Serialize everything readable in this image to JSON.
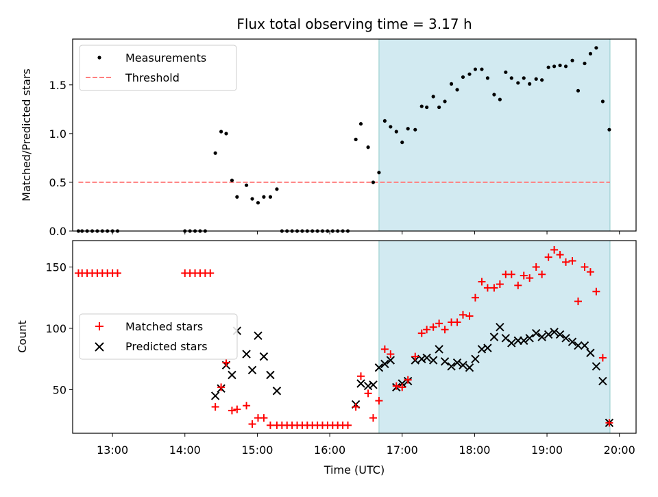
{
  "title": "Flux total observing time = 3.17 h",
  "colors": {
    "shade": "#add8e6",
    "measurement": "#000000",
    "threshold": "#ff7f7f",
    "matched": "#ff0000",
    "predicted": "#000000"
  },
  "chart_data": [
    {
      "type": "scatter",
      "panel": "top",
      "ylabel": "Matched/Predicted stars",
      "ylim": [
        0,
        1.97
      ],
      "yticks": [
        0.0,
        0.5,
        1.0,
        1.5
      ],
      "ytick_labels": [
        "0.0",
        "0.5",
        "1.0",
        "1.5"
      ],
      "xlim": [
        12.45,
        20.23
      ],
      "shaded_region": [
        16.68,
        19.87
      ],
      "legend_position": "upper-left",
      "series": [
        {
          "name": "Measurements",
          "marker": "dot",
          "points": [
            [
              12.53,
              0
            ],
            [
              12.58,
              0
            ],
            [
              12.65,
              0
            ],
            [
              12.72,
              0
            ],
            [
              12.79,
              0
            ],
            [
              12.86,
              0
            ],
            [
              12.93,
              0
            ],
            [
              13.0,
              0
            ],
            [
              13.07,
              0
            ],
            [
              14.0,
              0
            ],
            [
              14.07,
              0
            ],
            [
              14.14,
              0
            ],
            [
              14.21,
              0
            ],
            [
              14.28,
              0
            ],
            [
              14.42,
              0.8
            ],
            [
              14.5,
              1.02
            ],
            [
              14.57,
              1.0
            ],
            [
              14.65,
              0.52
            ],
            [
              14.72,
              0.35
            ],
            [
              14.85,
              0.47
            ],
            [
              14.93,
              0.33
            ],
            [
              15.01,
              0.29
            ],
            [
              15.09,
              0.35
            ],
            [
              15.18,
              0.35
            ],
            [
              15.27,
              0.43
            ],
            [
              15.34,
              0
            ],
            [
              15.41,
              0
            ],
            [
              15.48,
              0
            ],
            [
              15.55,
              0
            ],
            [
              15.62,
              0
            ],
            [
              15.69,
              0
            ],
            [
              15.76,
              0
            ],
            [
              15.83,
              0
            ],
            [
              15.9,
              0
            ],
            [
              15.97,
              0
            ],
            [
              16.04,
              0
            ],
            [
              16.11,
              0
            ],
            [
              16.18,
              0
            ],
            [
              16.25,
              0
            ],
            [
              16.36,
              0.94
            ],
            [
              16.43,
              1.1
            ],
            [
              16.53,
              0.86
            ],
            [
              16.6,
              0.5
            ],
            [
              16.68,
              0.6
            ],
            [
              16.76,
              1.13
            ],
            [
              16.84,
              1.07
            ],
            [
              16.92,
              1.02
            ],
            [
              17.0,
              0.91
            ],
            [
              17.08,
              1.05
            ],
            [
              17.18,
              1.04
            ],
            [
              17.27,
              1.28
            ],
            [
              17.34,
              1.27
            ],
            [
              17.43,
              1.38
            ],
            [
              17.51,
              1.27
            ],
            [
              17.59,
              1.33
            ],
            [
              17.68,
              1.51
            ],
            [
              17.76,
              1.45
            ],
            [
              17.84,
              1.58
            ],
            [
              17.93,
              1.61
            ],
            [
              18.01,
              1.66
            ],
            [
              18.1,
              1.66
            ],
            [
              18.18,
              1.57
            ],
            [
              18.27,
              1.4
            ],
            [
              18.35,
              1.35
            ],
            [
              18.43,
              1.63
            ],
            [
              18.51,
              1.57
            ],
            [
              18.6,
              1.52
            ],
            [
              18.68,
              1.57
            ],
            [
              18.76,
              1.51
            ],
            [
              18.85,
              1.56
            ],
            [
              18.93,
              1.55
            ],
            [
              19.02,
              1.68
            ],
            [
              19.1,
              1.69
            ],
            [
              19.18,
              1.7
            ],
            [
              19.26,
              1.69
            ],
            [
              19.35,
              1.75
            ],
            [
              19.43,
              1.44
            ],
            [
              19.52,
              1.72
            ],
            [
              19.6,
              1.82
            ],
            [
              19.68,
              1.88
            ],
            [
              19.77,
              1.33
            ],
            [
              19.86,
              1.04
            ]
          ]
        },
        {
          "name": "Threshold",
          "style": "dashed",
          "points": [
            [
              12.53,
              0.5
            ],
            [
              19.87,
              0.5
            ]
          ]
        }
      ]
    },
    {
      "type": "scatter",
      "panel": "bottom",
      "xlabel": "Time (UTC)",
      "ylabel": "Count",
      "ylim": [
        14.5,
        171.5
      ],
      "yticks": [
        50,
        100,
        150
      ],
      "ytick_labels": [
        "50",
        "100",
        "150"
      ],
      "xlim": [
        12.45,
        20.23
      ],
      "xticks": [
        13,
        14,
        15,
        16,
        17,
        18,
        19,
        20
      ],
      "xtick_labels": [
        "13:00",
        "14:00",
        "15:00",
        "16:00",
        "17:00",
        "18:00",
        "19:00",
        "20:00"
      ],
      "shaded_region": [
        16.68,
        19.87
      ],
      "legend_position": "center-left",
      "series": [
        {
          "name": "Matched stars",
          "marker": "plus",
          "points": [
            [
              12.53,
              145
            ],
            [
              12.58,
              145
            ],
            [
              12.65,
              145
            ],
            [
              12.72,
              145
            ],
            [
              12.79,
              145
            ],
            [
              12.86,
              145
            ],
            [
              12.93,
              145
            ],
            [
              13.0,
              145
            ],
            [
              13.07,
              145
            ],
            [
              14.0,
              145
            ],
            [
              14.07,
              145
            ],
            [
              14.14,
              145
            ],
            [
              14.21,
              145
            ],
            [
              14.28,
              145
            ],
            [
              14.35,
              145
            ],
            [
              14.42,
              36
            ],
            [
              14.5,
              52
            ],
            [
              14.57,
              72
            ],
            [
              14.65,
              33
            ],
            [
              14.72,
              34
            ],
            [
              14.85,
              37
            ],
            [
              14.93,
              22
            ],
            [
              15.01,
              27
            ],
            [
              15.09,
              27
            ],
            [
              15.18,
              21
            ],
            [
              15.27,
              21
            ],
            [
              15.34,
              21
            ],
            [
              15.41,
              21
            ],
            [
              15.48,
              21
            ],
            [
              15.55,
              21
            ],
            [
              15.62,
              21
            ],
            [
              15.69,
              21
            ],
            [
              15.76,
              21
            ],
            [
              15.83,
              21
            ],
            [
              15.9,
              21
            ],
            [
              15.97,
              21
            ],
            [
              16.04,
              21
            ],
            [
              16.11,
              21
            ],
            [
              16.18,
              21
            ],
            [
              16.25,
              21
            ],
            [
              16.36,
              36
            ],
            [
              16.43,
              61
            ],
            [
              16.53,
              47
            ],
            [
              16.6,
              27
            ],
            [
              16.68,
              41
            ],
            [
              16.76,
              83
            ],
            [
              16.84,
              79
            ],
            [
              16.92,
              53
            ],
            [
              17.0,
              52
            ],
            [
              17.08,
              58
            ],
            [
              17.18,
              77
            ],
            [
              17.27,
              96
            ],
            [
              17.34,
              99
            ],
            [
              17.43,
              101
            ],
            [
              17.51,
              104
            ],
            [
              17.59,
              99
            ],
            [
              17.68,
              105
            ],
            [
              17.76,
              105
            ],
            [
              17.84,
              111
            ],
            [
              17.93,
              110
            ],
            [
              18.01,
              125
            ],
            [
              18.1,
              138
            ],
            [
              18.18,
              133
            ],
            [
              18.27,
              133
            ],
            [
              18.35,
              136
            ],
            [
              18.43,
              144
            ],
            [
              18.51,
              144
            ],
            [
              18.6,
              135
            ],
            [
              18.68,
              143
            ],
            [
              18.76,
              141
            ],
            [
              18.85,
              150
            ],
            [
              18.93,
              144
            ],
            [
              19.02,
              158
            ],
            [
              19.1,
              164
            ],
            [
              19.18,
              160
            ],
            [
              19.26,
              154
            ],
            [
              19.35,
              155
            ],
            [
              19.43,
              122
            ],
            [
              19.52,
              150
            ],
            [
              19.6,
              146
            ],
            [
              19.68,
              130
            ],
            [
              19.77,
              76
            ],
            [
              19.86,
              23
            ]
          ]
        },
        {
          "name": "Predicted stars",
          "marker": "x",
          "points": [
            [
              14.42,
              45
            ],
            [
              14.5,
              51
            ],
            [
              14.57,
              70
            ],
            [
              14.65,
              62
            ],
            [
              14.72,
              98
            ],
            [
              14.85,
              79
            ],
            [
              14.93,
              66
            ],
            [
              15.01,
              94
            ],
            [
              15.09,
              77
            ],
            [
              15.18,
              62
            ],
            [
              15.27,
              49
            ],
            [
              16.36,
              38
            ],
            [
              16.43,
              55
            ],
            [
              16.53,
              53
            ],
            [
              16.6,
              54
            ],
            [
              16.68,
              68
            ],
            [
              16.76,
              71
            ],
            [
              16.84,
              74
            ],
            [
              16.92,
              52
            ],
            [
              17.0,
              55
            ],
            [
              17.08,
              57
            ],
            [
              17.18,
              74
            ],
            [
              17.27,
              75
            ],
            [
              17.34,
              76
            ],
            [
              17.43,
              74
            ],
            [
              17.51,
              83
            ],
            [
              17.59,
              73
            ],
            [
              17.68,
              69
            ],
            [
              17.76,
              72
            ],
            [
              17.84,
              70
            ],
            [
              17.93,
              68
            ],
            [
              18.01,
              75
            ],
            [
              18.1,
              83
            ],
            [
              18.18,
              84
            ],
            [
              18.27,
              93
            ],
            [
              18.35,
              101
            ],
            [
              18.43,
              92
            ],
            [
              18.51,
              88
            ],
            [
              18.6,
              90
            ],
            [
              18.68,
              90
            ],
            [
              18.76,
              92
            ],
            [
              18.85,
              96
            ],
            [
              18.93,
              93
            ],
            [
              19.02,
              95
            ],
            [
              19.1,
              97
            ],
            [
              19.18,
              95
            ],
            [
              19.26,
              92
            ],
            [
              19.35,
              89
            ],
            [
              19.43,
              86
            ],
            [
              19.52,
              86
            ],
            [
              19.6,
              80
            ],
            [
              19.68,
              69
            ],
            [
              19.77,
              57
            ],
            [
              19.86,
              23
            ]
          ]
        }
      ]
    }
  ]
}
